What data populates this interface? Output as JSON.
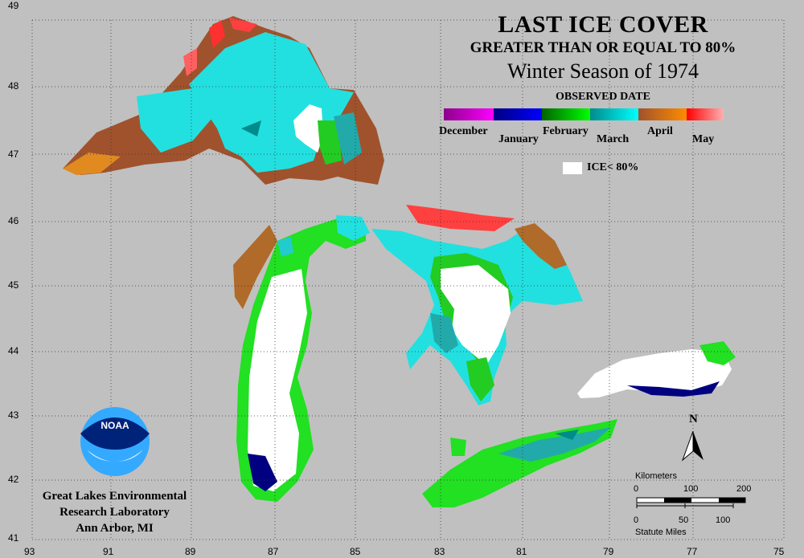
{
  "title": {
    "line1": "LAST ICE COVER",
    "line2": "GREATER THAN OR EQUAL TO 80%",
    "line3": "Winter Season of 1974"
  },
  "legend": {
    "title": "OBSERVED DATE",
    "months": [
      "December",
      "January",
      "February",
      "March",
      "April",
      "May"
    ],
    "colors": {
      "December": [
        "#8b008b",
        "#ff00ff"
      ],
      "January": [
        "#000080",
        "#0000ff"
      ],
      "February": [
        "#008000",
        "#00ff00"
      ],
      "March": [
        "#008b8b",
        "#00ffff"
      ],
      "April": [
        "#a0522d",
        "#ff8c00"
      ],
      "May": [
        "#ff0000",
        "#ffa0a0"
      ]
    },
    "ice_label": "ICE< 80%"
  },
  "axes": {
    "latitudes": [
      "49",
      "48",
      "47",
      "46",
      "45",
      "44",
      "43",
      "42",
      "41"
    ],
    "longitudes": [
      "93",
      "91",
      "89",
      "87",
      "85",
      "83",
      "81",
      "79",
      "77",
      "75"
    ]
  },
  "north_label": "N",
  "scale": {
    "km_label": "Kilometers",
    "km_ticks": [
      "0",
      "100",
      "200"
    ],
    "mi_ticks": [
      "0",
      "50",
      "100"
    ],
    "mi_label": "Statute Miles"
  },
  "logo_text": "NOAA",
  "lab": {
    "line1": "Great Lakes Environmental",
    "line2": "Research Laboratory",
    "line3": "Ann Arbor, MI"
  }
}
